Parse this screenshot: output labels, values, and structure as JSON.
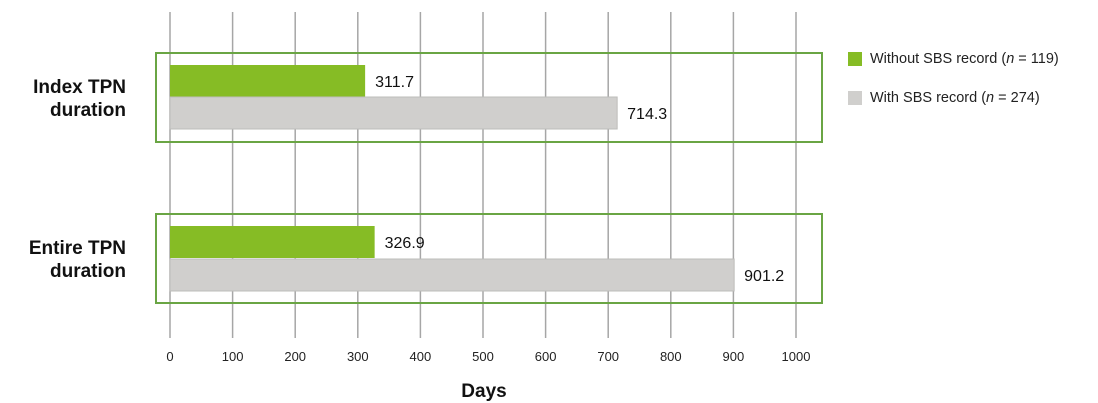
{
  "chart_data": {
    "type": "bar",
    "orientation": "horizontal",
    "categories": [
      "Index TPN duration",
      "Entire TPN duration"
    ],
    "category_lines": [
      [
        "Index TPN",
        "duration"
      ],
      [
        "Entire TPN",
        "duration"
      ]
    ],
    "series": [
      {
        "name": "Without SBS record (n = 119)",
        "values": [
          311.7,
          326.9
        ],
        "labels": [
          "311.7",
          "326.9"
        ],
        "color": "#86bc25"
      },
      {
        "name": "With SBS record (n = 274)",
        "values": [
          714.3,
          901.2
        ],
        "labels": [
          "714.3",
          "901.2"
        ],
        "color": "#d0cfcd"
      }
    ],
    "xlabel": "Days",
    "xlim": [
      0,
      1000
    ],
    "xticks": [
      0,
      100,
      200,
      300,
      400,
      500,
      600,
      700,
      800,
      900,
      1000
    ],
    "grid": "vertical",
    "legend_position": "right",
    "group_outline_color": "#6aa544"
  },
  "legend": {
    "items": [
      {
        "prefix": "Without SBS record (",
        "italic": "n",
        "suffix": " = 119)",
        "color": "#86bc25"
      },
      {
        "prefix": "With SBS record (",
        "italic": "n",
        "suffix": " = 274)",
        "color": "#d0cfcd"
      }
    ]
  }
}
